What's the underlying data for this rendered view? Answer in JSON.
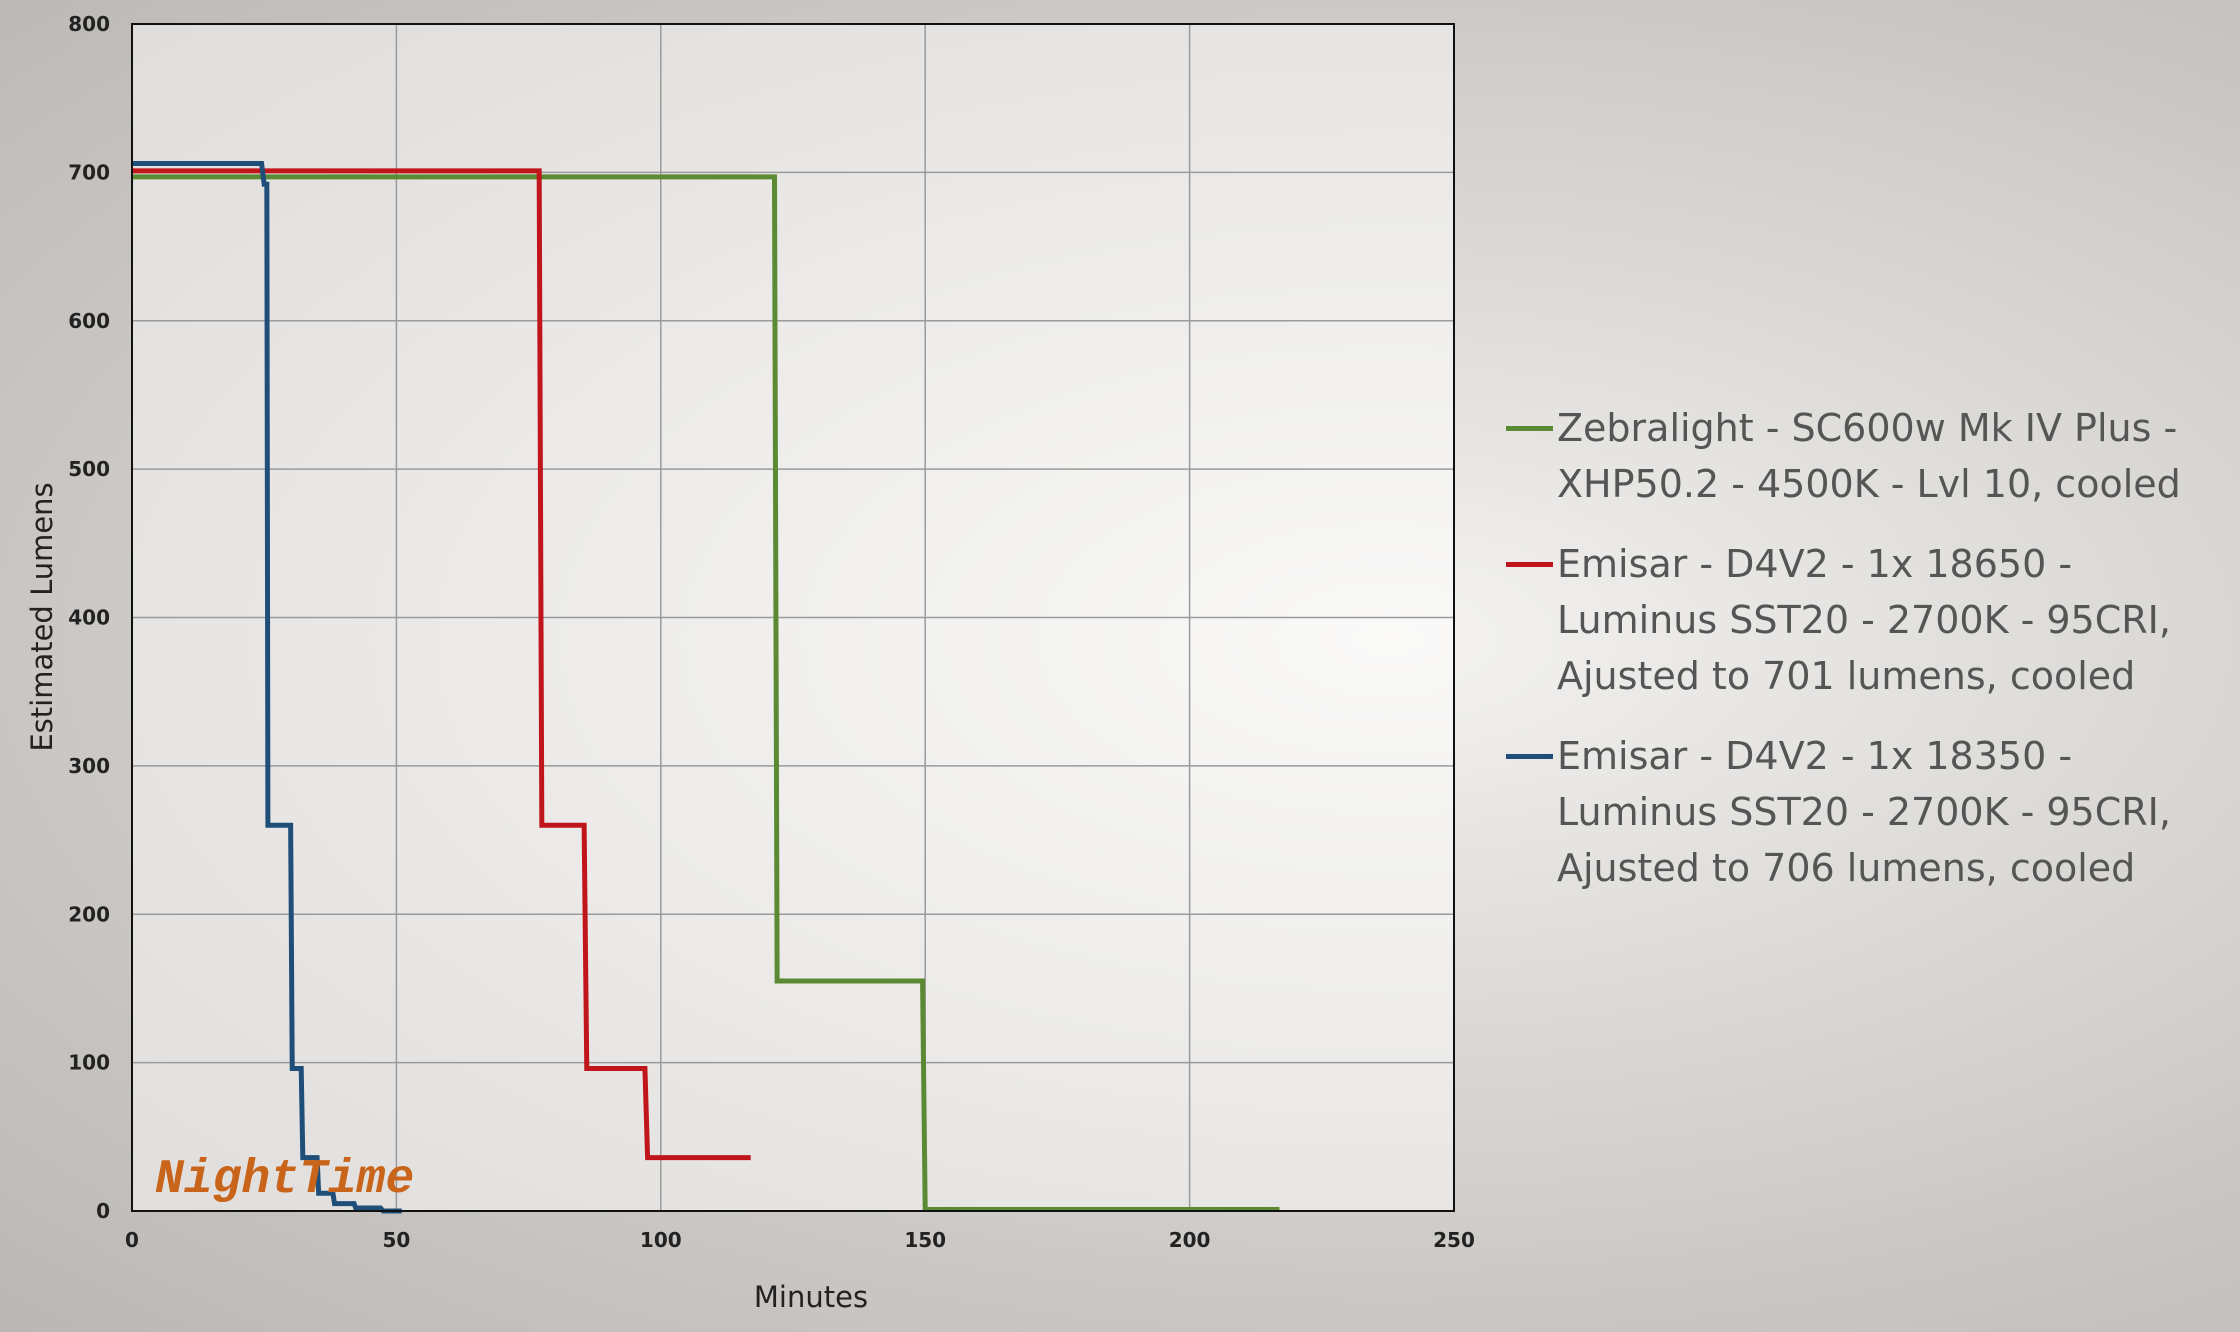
{
  "chart_data": {
    "type": "line",
    "x_label": "Minutes",
    "y_label": "Estimated Lumens",
    "annotation": "NightTime",
    "xlim": [
      0,
      250
    ],
    "xticks": [
      0,
      50,
      100,
      150,
      200,
      250
    ],
    "ylim": [
      0,
      800
    ],
    "yticks": [
      0,
      100,
      200,
      300,
      400,
      500,
      600,
      700,
      800
    ],
    "grid": true,
    "series": [
      {
        "name": "Zebralight - SC600w Mk IV Plus - XHP50.2 - 4500K - Lvl 10, cooled",
        "color": "#5b8a35",
        "x": [
          0,
          121.5,
          122,
          149.5,
          150,
          217
        ],
        "values": [
          697,
          697,
          155,
          155,
          1,
          1
        ]
      },
      {
        "name": "Emisar - D4V2 - 1x 18650 - Luminus SST20 - 2700K - 95CRI, Ajusted to 701 lumens, cooled",
        "color": "#c0161b",
        "x": [
          0,
          77,
          77.5,
          85.5,
          86,
          97,
          97.5,
          117
        ],
        "values": [
          701,
          701,
          260,
          260,
          96,
          96,
          36,
          36
        ]
      },
      {
        "name": "Emisar - D4V2 - 1x 18350 - Luminus SST20 - 2700K - 95CRI, Ajusted to 706 lumens, cooled",
        "color": "#1f4e79",
        "x": [
          0,
          24.5,
          25,
          25.5,
          25.7,
          30,
          30.3,
          32,
          32.3,
          35,
          35.3,
          38,
          38.3,
          42,
          42.3,
          47,
          47.5,
          51
        ],
        "values": [
          706,
          706,
          692,
          692,
          260,
          260,
          96,
          96,
          36,
          36,
          12,
          12,
          5,
          5,
          2,
          2,
          0,
          0
        ]
      }
    ]
  }
}
